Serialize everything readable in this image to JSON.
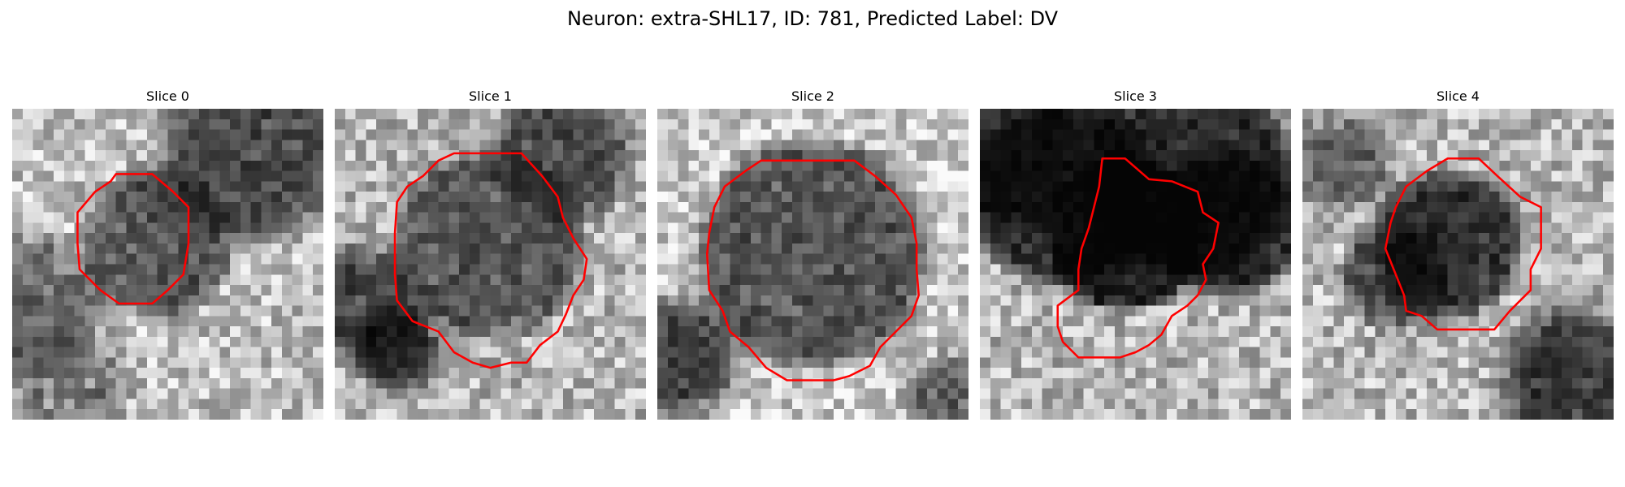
{
  "figure": {
    "title": "Neuron: extra-SHL17, ID: 781, Predicted Label: DV",
    "contour_color": "#ff0000"
  },
  "slices": [
    {
      "title": "Slice 0",
      "image_description": "grayscale microscopy patch with a roughly octagonal dark cell body outlined in red, darker region at top right"
    },
    {
      "title": "Slice 1",
      "image_description": "grayscale microscopy patch with a large dark rounded cell body outlined in red"
    },
    {
      "title": "Slice 2",
      "image_description": "grayscale microscopy patch with a large dark rounded cell body outlined in red, bright surroundings"
    },
    {
      "title": "Slice 3",
      "image_description": "grayscale microscopy patch with a very dark band across the upper half and an irregular red outline extending downward"
    },
    {
      "title": "Slice 4",
      "image_description": "grayscale microscopy patch with a smaller dark cell body outlined in red, dark region at bottom right"
    }
  ]
}
